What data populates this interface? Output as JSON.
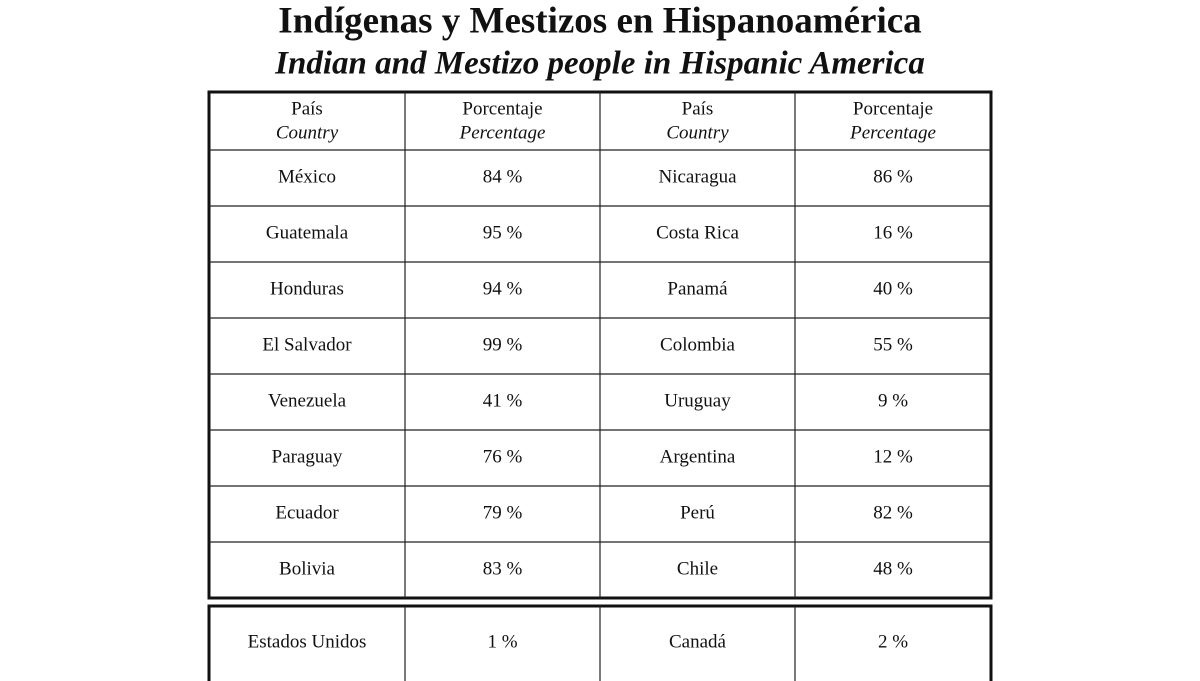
{
  "header": {
    "title": "Indígenas y Mestizos en Hispanoamérica",
    "subtitle": "Indian and Mestizo people in Hispanic America"
  },
  "table": {
    "columns": [
      {
        "es": "País",
        "en": "Country"
      },
      {
        "es": "Porcentaje",
        "en": "Percentage"
      },
      {
        "es": "País",
        "en": "Country"
      },
      {
        "es": "Porcentaje",
        "en": "Percentage"
      }
    ],
    "rows": [
      [
        "México",
        "84 %",
        "Nicaragua",
        "86 %"
      ],
      [
        "Guatemala",
        "95 %",
        "Costa Rica",
        "16 %"
      ],
      [
        "Honduras",
        "94 %",
        "Panamá",
        "40 %"
      ],
      [
        "El Salvador",
        "99 %",
        "Colombia",
        "55 %"
      ],
      [
        "Venezuela",
        "41 %",
        "Uruguay",
        "9 %"
      ],
      [
        "Paraguay",
        "76 %",
        "Argentina",
        "12 %"
      ],
      [
        "Ecuador",
        "79 %",
        "Perú",
        "82 %"
      ],
      [
        "Bolivia",
        "83 %",
        "Chile",
        "48 %"
      ]
    ]
  },
  "footer_table": {
    "rows": [
      [
        "Estados Unidos",
        "1 %",
        "Canadá",
        "2 %"
      ]
    ]
  }
}
